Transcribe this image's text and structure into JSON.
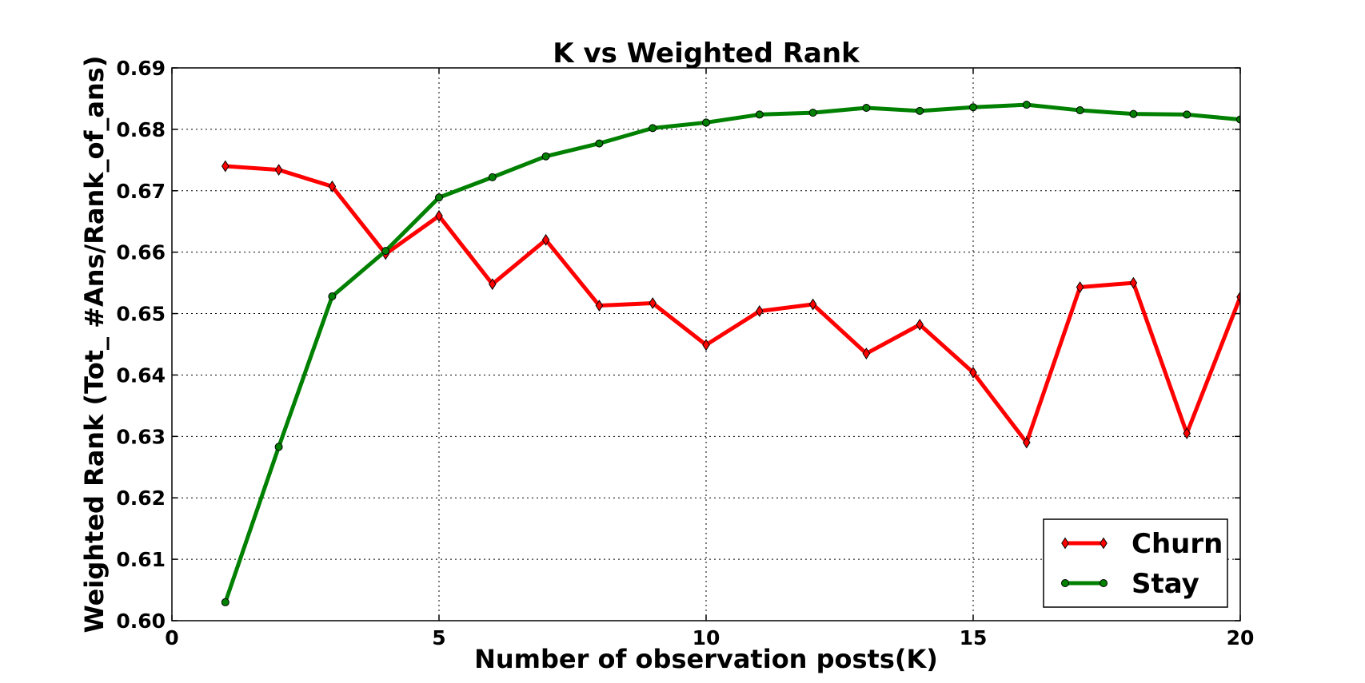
{
  "chart_data": {
    "type": "line",
    "title": "K vs Weighted Rank",
    "xlabel": "Number of observation posts(K)",
    "ylabel": "Weighted Rank (Tot_ #Ans/Rank_of_ans)",
    "xlim": [
      0,
      20
    ],
    "ylim": [
      0.6,
      0.69
    ],
    "xticks": [
      "0",
      "5",
      "10",
      "15",
      "20"
    ],
    "yticks": [
      "0.60",
      "0.61",
      "0.62",
      "0.63",
      "0.64",
      "0.65",
      "0.66",
      "0.67",
      "0.68",
      "0.69"
    ],
    "grid": true,
    "legend_position": "lower-right",
    "x": [
      1,
      2,
      3,
      4,
      5,
      6,
      7,
      8,
      9,
      10,
      11,
      12,
      13,
      14,
      15,
      16,
      17,
      18,
      19,
      20
    ],
    "series": [
      {
        "name": "Churn",
        "color": "#ff0000",
        "marker": "diamond",
        "values": [
          0.674,
          0.6734,
          0.6707,
          0.6597,
          0.6659,
          0.6548,
          0.662,
          0.6513,
          0.6517,
          0.6449,
          0.6504,
          0.6515,
          0.6435,
          0.6482,
          0.6404,
          0.629,
          0.6543,
          0.655,
          0.6305,
          0.6527
        ]
      },
      {
        "name": "Stay",
        "color": "#008000",
        "marker": "circle",
        "values": [
          0.603,
          0.6283,
          0.6528,
          0.6602,
          0.6689,
          0.6722,
          0.6756,
          0.6777,
          0.6802,
          0.6811,
          0.6824,
          0.6827,
          0.6835,
          0.683,
          0.6836,
          0.684,
          0.6831,
          0.6825,
          0.6824,
          0.6816
        ]
      }
    ]
  }
}
